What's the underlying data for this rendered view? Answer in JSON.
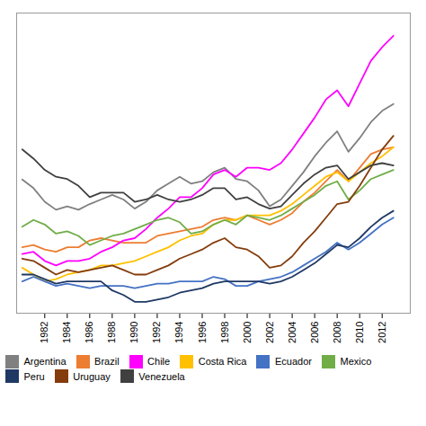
{
  "chart_data": {
    "type": "line",
    "x": [
      1980,
      1981,
      1982,
      1983,
      1984,
      1985,
      1986,
      1987,
      1988,
      1989,
      1990,
      1991,
      1992,
      1993,
      1994,
      1995,
      1996,
      1997,
      1998,
      1999,
      2000,
      2001,
      2002,
      2003,
      2004,
      2005,
      2006,
      2007,
      2008,
      2009,
      2010,
      2011,
      2012,
      2013
    ],
    "series": [
      {
        "name": "Argentina",
        "color": "#808080",
        "values": [
          7680,
          7300,
          6700,
          6350,
          6500,
          6350,
          6600,
          6800,
          7000,
          6800,
          6400,
          6700,
          7200,
          7500,
          7800,
          7500,
          7600,
          8000,
          8200,
          7700,
          7600,
          7200,
          6500,
          6800,
          7400,
          8000,
          8700,
          9300,
          9800,
          8900,
          9500,
          10200,
          10700,
          11000
        ]
      },
      {
        "name": "Brazil",
        "color": "#ED7D31",
        "values": [
          4700,
          4800,
          4600,
          4500,
          4700,
          4700,
          5000,
          5100,
          5000,
          4900,
          4900,
          4900,
          5200,
          5300,
          5400,
          5500,
          5600,
          5900,
          6000,
          5900,
          6100,
          5900,
          5700,
          5900,
          6200,
          6700,
          7100,
          7600,
          8100,
          7600,
          8200,
          8800,
          9000,
          9100
        ]
      },
      {
        "name": "Chile",
        "color": "#FF00FF",
        "values": [
          4400,
          4500,
          4100,
          3900,
          4100,
          4100,
          4200,
          4500,
          4700,
          5000,
          5100,
          5500,
          6000,
          6400,
          6900,
          6900,
          7300,
          7900,
          8100,
          7800,
          8200,
          8200,
          8100,
          8400,
          9000,
          9700,
          10400,
          11200,
          11600,
          10900,
          11900,
          12900,
          13500,
          14000
        ]
      },
      {
        "name": "Costa Rica",
        "color": "#FFC000",
        "values": [
          3800,
          3500,
          3200,
          3300,
          3500,
          3600,
          3700,
          3900,
          3900,
          4000,
          4100,
          4300,
          4500,
          4700,
          5000,
          5200,
          5300,
          5700,
          5900,
          5900,
          6100,
          6100,
          6100,
          6300,
          6600,
          7000,
          7400,
          7800,
          8000,
          7600,
          8000,
          8400,
          8700,
          9100
        ]
      },
      {
        "name": "Ecuador",
        "color": "#4472C4",
        "values": [
          3200,
          3400,
          3200,
          3000,
          3100,
          3000,
          2900,
          3000,
          3000,
          3000,
          2900,
          3000,
          3100,
          3100,
          3200,
          3200,
          3200,
          3400,
          3300,
          3000,
          3000,
          3200,
          3300,
          3400,
          3600,
          3900,
          4200,
          4500,
          4900,
          4600,
          4900,
          5300,
          5700,
          6000
        ]
      },
      {
        "name": "Mexico",
        "color": "#70AD47",
        "values": [
          5600,
          5900,
          5700,
          5300,
          5400,
          5200,
          4800,
          5000,
          5200,
          5300,
          5500,
          5700,
          5900,
          6000,
          5800,
          5300,
          5400,
          5700,
          5900,
          5700,
          6100,
          6000,
          5900,
          6100,
          6400,
          6700,
          7000,
          7400,
          7600,
          6800,
          7200,
          7700,
          7900,
          8100
        ]
      },
      {
        "name": "Peru",
        "color": "#1F3864",
        "values": [
          3500,
          3500,
          3300,
          3100,
          3200,
          3200,
          3200,
          3200,
          2800,
          2600,
          2300,
          2300,
          2400,
          2500,
          2700,
          2800,
          2900,
          3100,
          3200,
          3200,
          3200,
          3200,
          3100,
          3200,
          3400,
          3700,
          4000,
          4400,
          4800,
          4700,
          5100,
          5600,
          6000,
          6300
        ]
      },
      {
        "name": "Uruguay",
        "color": "#843C0C",
        "values": [
          4200,
          4100,
          3800,
          3500,
          3700,
          3600,
          3700,
          3800,
          3900,
          3700,
          3500,
          3500,
          3700,
          3900,
          4200,
          4400,
          4600,
          4900,
          5100,
          4700,
          4600,
          4300,
          3800,
          3900,
          4300,
          4900,
          5400,
          6000,
          6600,
          6700,
          7400,
          8200,
          9000,
          9600
        ]
      },
      {
        "name": "Venezuela",
        "color": "#404040",
        "values": [
          9000,
          8600,
          8100,
          7800,
          7700,
          7400,
          6900,
          7100,
          7100,
          7100,
          6700,
          6800,
          7000,
          6800,
          6700,
          6800,
          7000,
          7300,
          7300,
          6800,
          6900,
          6600,
          6400,
          6500,
          7000,
          7500,
          7900,
          8200,
          8300,
          7700,
          8000,
          8300,
          8400,
          8300
        ]
      }
    ],
    "xlim": [
      1979.5,
      2014.5
    ],
    "xticks": [
      1982,
      1984,
      1986,
      1988,
      1990,
      1992,
      1994,
      1996,
      1998,
      2000,
      2002,
      2004,
      2006,
      2008,
      2010,
      2012
    ],
    "ylim": [
      1800,
      15000
    ],
    "yticks": [],
    "tick_labels": "x",
    "grid": false,
    "legend": "bottom"
  }
}
